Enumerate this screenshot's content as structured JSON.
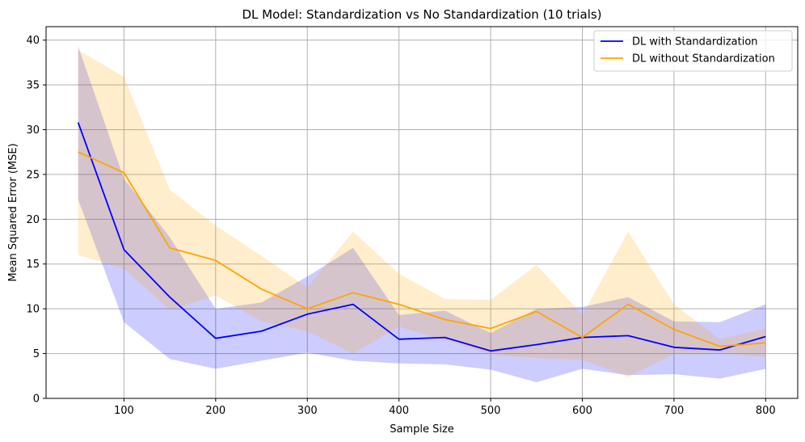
{
  "chart_data": {
    "type": "line",
    "title": "DL Model: Standardization vs No Standardization (10 trials)",
    "xlabel": "Sample Size",
    "ylabel": "Mean Squared Error (MSE)",
    "xlim": [
      15,
      835
    ],
    "ylim": [
      0,
      41.5
    ],
    "xticks": [
      100,
      200,
      300,
      400,
      500,
      600,
      700,
      800
    ],
    "yticks": [
      0,
      5,
      10,
      15,
      20,
      25,
      30,
      35,
      40
    ],
    "grid": true,
    "legend_position": "top-right",
    "x": [
      50,
      100,
      150,
      200,
      250,
      300,
      350,
      400,
      450,
      500,
      550,
      600,
      650,
      700,
      750,
      800
    ],
    "series": [
      {
        "name": "DL with Standardization",
        "color": "#0000ff",
        "band_color": "#0000ff",
        "values": [
          30.8,
          16.6,
          11.3,
          6.7,
          7.5,
          9.4,
          10.5,
          6.6,
          6.8,
          5.3,
          6.0,
          6.8,
          7.0,
          5.7,
          5.4,
          6.9
        ],
        "lower": [
          22.2,
          8.5,
          4.4,
          3.3,
          4.2,
          5.1,
          4.2,
          3.9,
          3.8,
          3.2,
          1.8,
          3.3,
          2.6,
          2.7,
          2.2,
          3.3
        ],
        "upper": [
          39.3,
          24.5,
          18.0,
          10.0,
          10.7,
          13.6,
          16.8,
          9.3,
          9.8,
          7.3,
          10.0,
          10.2,
          11.3,
          8.6,
          8.5,
          10.5
        ]
      },
      {
        "name": "DL without Standardization",
        "color": "#ffa500",
        "band_color": "#ffa500",
        "values": [
          27.5,
          25.2,
          16.8,
          15.4,
          12.2,
          10.0,
          11.8,
          10.5,
          8.8,
          7.8,
          9.7,
          6.8,
          10.5,
          7.7,
          5.8,
          6.2
        ],
        "lower": [
          16.0,
          14.5,
          9.9,
          11.5,
          8.6,
          7.5,
          5.0,
          8.0,
          6.5,
          4.9,
          4.5,
          4.3,
          2.4,
          5.0,
          5.1,
          4.6
        ],
        "upper": [
          38.9,
          35.9,
          23.3,
          19.3,
          15.9,
          12.4,
          18.6,
          13.9,
          11.1,
          11.0,
          14.9,
          9.3,
          18.6,
          10.5,
          6.6,
          7.8
        ]
      }
    ]
  }
}
